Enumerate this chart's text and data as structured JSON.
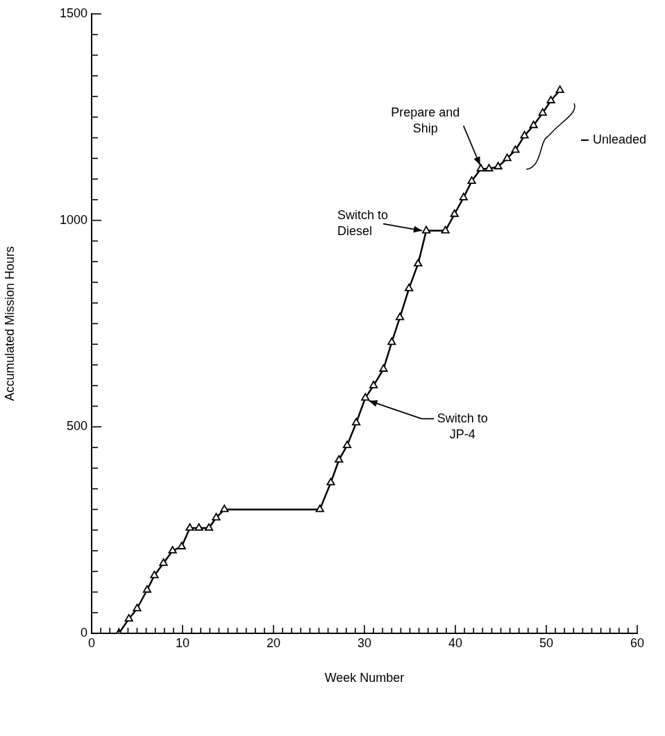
{
  "chart_data": {
    "type": "line",
    "xlabel": "Week Number",
    "ylabel": "Accumulated Mission Hours",
    "x": [
      3.0,
      4.1,
      5.0,
      6.1,
      6.9,
      7.9,
      8.9,
      9.9,
      10.8,
      11.8,
      12.9,
      13.7,
      14.6,
      25.1,
      26.3,
      27.2,
      28.1,
      29.1,
      30.1,
      31.0,
      32.1,
      33.0,
      33.9,
      34.9,
      35.9,
      36.8,
      38.9,
      39.9,
      40.9,
      41.8,
      42.8,
      43.7,
      44.7,
      45.7,
      46.6,
      47.6,
      48.6,
      49.6,
      50.5,
      51.5
    ],
    "values": [
      0,
      35,
      60,
      105,
      140,
      170,
      200,
      210,
      255,
      255,
      255,
      280,
      300,
      300,
      365,
      420,
      455,
      510,
      570,
      600,
      640,
      705,
      765,
      835,
      895,
      975,
      975,
      1015,
      1055,
      1095,
      1125,
      1125,
      1130,
      1150,
      1170,
      1205,
      1230,
      1260,
      1290,
      1315
    ],
    "color": "#000000",
    "marker": "triangle",
    "line_style": "solid",
    "legend": false,
    "xlim": [
      0,
      60
    ],
    "xticks": [
      0,
      {
        "value": 1,
        "label": null
      },
      {
        "value": 2,
        "label": null
      },
      {
        "value": 3,
        "label": null
      },
      {
        "value": 4,
        "label": null
      },
      {
        "value": 5,
        "label": null
      },
      {
        "value": 6,
        "label": null
      },
      {
        "value": 7,
        "label": null
      },
      {
        "value": 8,
        "label": null
      },
      {
        "value": 9,
        "label": null
      },
      10,
      {
        "value": 11,
        "label": null
      },
      {
        "value": 12,
        "label": null
      },
      {
        "value": 13,
        "label": null
      },
      {
        "value": 14,
        "label": null
      },
      {
        "value": 15,
        "label": null
      },
      {
        "value": 16,
        "label": null
      },
      {
        "value": 17,
        "label": null
      },
      {
        "value": 18,
        "label": null
      },
      {
        "value": 19,
        "label": null
      },
      20,
      {
        "value": 21,
        "label": null
      },
      {
        "value": 22,
        "label": null
      },
      {
        "value": 23,
        "label": null
      },
      {
        "value": 24,
        "label": null
      },
      {
        "value": 25,
        "label": null
      },
      {
        "value": 26,
        "label": null
      },
      {
        "value": 27,
        "label": null
      },
      {
        "value": 28,
        "label": null
      },
      {
        "value": 29,
        "label": null
      },
      30,
      {
        "value": 31,
        "label": null
      },
      {
        "value": 32,
        "label": null
      },
      {
        "value": 33,
        "label": null
      },
      {
        "value": 34,
        "label": null
      },
      {
        "value": 35,
        "label": null
      },
      {
        "value": 36,
        "label": null
      },
      {
        "value": 37,
        "label": null
      },
      {
        "value": 38,
        "label": null
      },
      {
        "value": 39,
        "label": null
      },
      40,
      {
        "value": 41,
        "label": null
      },
      {
        "value": 42,
        "label": null
      },
      {
        "value": 43,
        "label": null
      },
      {
        "value": 44,
        "label": null
      },
      {
        "value": 45,
        "label": null
      },
      {
        "value": 46,
        "label": null
      },
      {
        "value": 47,
        "label": null
      },
      {
        "value": 48,
        "label": null
      },
      {
        "value": 49,
        "label": null
      },
      50,
      {
        "value": 51,
        "label": null
      },
      {
        "value": 52,
        "label": null
      },
      {
        "value": 53,
        "label": null
      },
      {
        "value": 54,
        "label": null
      },
      {
        "value": 55,
        "label": null
      },
      {
        "value": 56,
        "label": null
      },
      {
        "value": 57,
        "label": null
      },
      {
        "value": 58,
        "label": null
      },
      {
        "value": 59,
        "label": null
      },
      60
    ],
    "ylim": [
      0,
      1500
    ],
    "yticks": [
      0,
      {
        "value": 50,
        "label": null
      },
      {
        "value": 100,
        "label": null
      },
      {
        "value": 150,
        "label": null
      },
      {
        "value": 200,
        "label": null
      },
      {
        "value": 250,
        "label": null
      },
      {
        "value": 300,
        "label": null
      },
      {
        "value": 350,
        "label": null
      },
      {
        "value": 400,
        "label": null
      },
      {
        "value": 450,
        "label": null
      },
      500,
      {
        "value": 550,
        "label": null
      },
      {
        "value": 600,
        "label": null
      },
      {
        "value": 650,
        "label": null
      },
      {
        "value": 700,
        "label": null
      },
      {
        "value": 750,
        "label": null
      },
      {
        "value": 800,
        "label": null
      },
      {
        "value": 850,
        "label": null
      },
      {
        "value": 900,
        "label": null
      },
      {
        "value": 950,
        "label": null
      },
      1000,
      {
        "value": 1050,
        "label": null
      },
      {
        "value": 1100,
        "label": null
      },
      {
        "value": 1150,
        "label": null
      },
      {
        "value": 1200,
        "label": null
      },
      {
        "value": 1250,
        "label": null
      },
      {
        "value": 1300,
        "label": null
      },
      {
        "value": 1350,
        "label": null
      },
      {
        "value": 1400,
        "label": null
      },
      {
        "value": 1450,
        "label": null
      },
      1500
    ],
    "annotations": [
      {
        "text": "Switch to\nJP-4",
        "x": 30.1,
        "y": 570
      },
      {
        "text": "Switch to\nDiesel",
        "x": 36.8,
        "y": 975
      },
      {
        "text": "Prepare and\nShip",
        "x": 42.8,
        "y": 1125
      },
      "Unleaded"
    ]
  }
}
